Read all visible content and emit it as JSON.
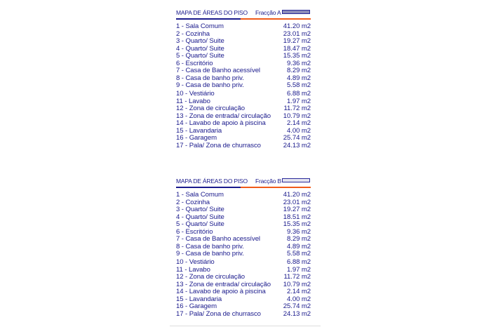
{
  "tables": [
    {
      "title": "MAPA DE ÁREAS DO PISO",
      "fraction": "Fracção A",
      "swatch_color": "#8a8ab8",
      "rows": [
        {
          "label": "1 - Sala Comum",
          "area": "41.20 m2"
        },
        {
          "label": "2 - Cozinha",
          "area": "23.01 m2"
        },
        {
          "label": "3 - Quarto/ Suite",
          "area": "19.27 m2"
        },
        {
          "label": "4 - Quarto/ Suite",
          "area": "18.47 m2"
        },
        {
          "label": "5 - Quarto/ Suite",
          "area": "15.35 m2"
        },
        {
          "label": "6 - Escritório",
          "area": "9.36 m2"
        },
        {
          "label": "7 - Casa de Banho acessível",
          "area": "8.29 m2"
        },
        {
          "label": "8 - Casa de banho priv.",
          "area": "4.89 m2"
        },
        {
          "label": "9 - Casa de banho priv.",
          "area": "5.58 m2"
        },
        {
          "label": "10 - Vestiário",
          "area": "6.88 m2"
        },
        {
          "label": "11 - Lavabo",
          "area": "1.97 m2"
        },
        {
          "label": "12 - Zona de circulação",
          "area": "11.72 m2"
        },
        {
          "label": "13 - Zona de entrada/ circulação",
          "area": "10.79 m2"
        },
        {
          "label": "14 - Lavabo de apoio à piscina",
          "area": "2.14 m2"
        },
        {
          "label": "15 - Lavandaria",
          "area": "4.00 m2"
        },
        {
          "label": "16 - Garagem",
          "area": "25.74 m2"
        },
        {
          "label": "17 - Pala/ Zona de churrasco",
          "area": "24.13 m2"
        }
      ]
    },
    {
      "title": "MAPA DE ÁREAS DO PISO",
      "fraction": "Fracção B",
      "swatch_color": "#e4e4f0",
      "rows": [
        {
          "label": "1 - Sala Comum",
          "area": "41.20 m2"
        },
        {
          "label": "2 - Cozinha",
          "area": "23.01 m2"
        },
        {
          "label": "3 - Quarto/ Suite",
          "area": "19.27 m2"
        },
        {
          "label": "4 - Quarto/ Suite",
          "area": "18.51 m2"
        },
        {
          "label": "5 - Quarto/ Suite",
          "area": "15.35 m2"
        },
        {
          "label": "6 - Escritório",
          "area": "9.36 m2"
        },
        {
          "label": "7 - Casa de Banho acessível",
          "area": "8.29 m2"
        },
        {
          "label": "8 - Casa de banho priv.",
          "area": "4.89 m2"
        },
        {
          "label": "9 - Casa de banho priv.",
          "area": "5.58 m2"
        },
        {
          "label": "10 - Vestiário",
          "area": "6.88 m2"
        },
        {
          "label": "11 - Lavabo",
          "area": "1.97 m2"
        },
        {
          "label": "12 - Zona de circulação",
          "area": "11.72 m2"
        },
        {
          "label": "13 - Zona de entrada/ circulação",
          "area": "10.79 m2"
        },
        {
          "label": "14 - Lavabo de apoio à piscina",
          "area": "2.14 m2"
        },
        {
          "label": "15 - Lavandaria",
          "area": "4.00 m2"
        },
        {
          "label": "16 - Garagem",
          "area": "25.74 m2"
        },
        {
          "label": "17 - Pala/ Zona de churrasco",
          "area": "24.13 m2"
        }
      ]
    }
  ]
}
